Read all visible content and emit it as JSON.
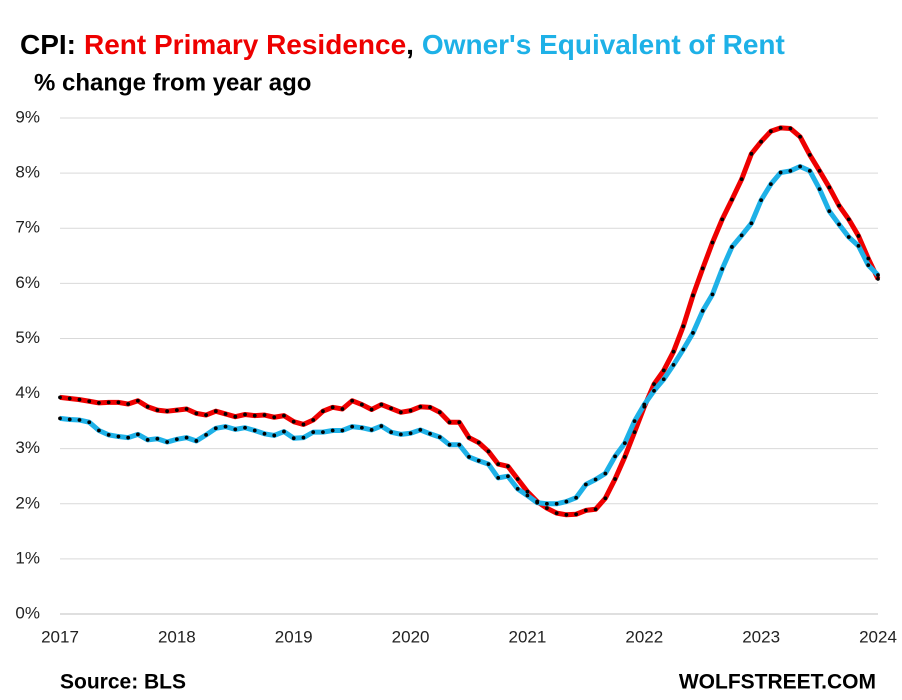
{
  "chart_data": {
    "type": "line",
    "title_prefix": "CPI:",
    "title_separator": ",",
    "subtitle": "% change from year ago",
    "source": "Source: BLS",
    "watermark": "WOLFSTREET.COM",
    "categories": [
      "2017",
      null,
      null,
      null,
      null,
      null,
      null,
      null,
      null,
      null,
      null,
      null,
      "2018",
      null,
      null,
      null,
      null,
      null,
      null,
      null,
      null,
      null,
      null,
      null,
      "2019",
      null,
      null,
      null,
      null,
      null,
      null,
      null,
      null,
      null,
      null,
      null,
      "2020",
      null,
      null,
      null,
      null,
      null,
      null,
      null,
      null,
      null,
      null,
      null,
      "2021",
      null,
      null,
      null,
      null,
      null,
      null,
      null,
      null,
      null,
      null,
      null,
      "2022",
      null,
      null,
      null,
      null,
      null,
      null,
      null,
      null,
      null,
      null,
      null,
      "2023",
      null,
      null,
      null,
      null,
      null,
      null,
      null,
      null,
      null,
      null,
      null,
      "2024"
    ],
    "series": [
      {
        "name": "Rent Primary Residence",
        "color": "#ee0000",
        "values": [
          3.93,
          3.91,
          3.89,
          3.86,
          3.83,
          3.84,
          3.84,
          3.81,
          3.87,
          3.76,
          3.7,
          3.68,
          3.7,
          3.72,
          3.64,
          3.61,
          3.68,
          3.63,
          3.58,
          3.62,
          3.6,
          3.61,
          3.57,
          3.6,
          3.49,
          3.44,
          3.52,
          3.68,
          3.75,
          3.72,
          3.87,
          3.8,
          3.71,
          3.8,
          3.73,
          3.66,
          3.69,
          3.76,
          3.75,
          3.66,
          3.48,
          3.48,
          3.2,
          3.11,
          2.95,
          2.72,
          2.68,
          2.45,
          2.22,
          2.04,
          1.92,
          1.83,
          1.8,
          1.81,
          1.88,
          1.9,
          2.1,
          2.45,
          2.85,
          3.3,
          3.76,
          4.17,
          4.42,
          4.76,
          5.22,
          5.78,
          6.27,
          6.74,
          7.16,
          7.52,
          7.89,
          8.35,
          8.57,
          8.76,
          8.82,
          8.81,
          8.66,
          8.33,
          8.04,
          7.74,
          7.41,
          7.16,
          6.86,
          6.45,
          6.08
        ]
      },
      {
        "name": "Owner's Equivalent of Rent",
        "color": "#1eb1e7",
        "values": [
          3.55,
          3.53,
          3.52,
          3.48,
          3.33,
          3.25,
          3.22,
          3.2,
          3.26,
          3.16,
          3.18,
          3.12,
          3.17,
          3.2,
          3.14,
          3.25,
          3.37,
          3.4,
          3.35,
          3.38,
          3.33,
          3.27,
          3.24,
          3.31,
          3.19,
          3.2,
          3.3,
          3.3,
          3.33,
          3.33,
          3.4,
          3.38,
          3.34,
          3.41,
          3.3,
          3.26,
          3.28,
          3.34,
          3.27,
          3.21,
          3.07,
          3.07,
          2.85,
          2.78,
          2.72,
          2.47,
          2.5,
          2.27,
          2.15,
          2.02,
          2.0,
          2.0,
          2.04,
          2.11,
          2.35,
          2.44,
          2.55,
          2.86,
          3.1,
          3.5,
          3.8,
          4.05,
          4.26,
          4.52,
          4.8,
          5.1,
          5.5,
          5.8,
          6.26,
          6.66,
          6.87,
          7.09,
          7.51,
          7.8,
          8.01,
          8.04,
          8.12,
          8.04,
          7.71,
          7.31,
          7.07,
          6.84,
          6.68,
          6.33,
          6.15
        ]
      }
    ],
    "ylim": [
      0,
      9
    ],
    "yticks": [
      {
        "value": 0,
        "label": "0%"
      },
      {
        "value": 1,
        "label": "1%"
      },
      {
        "value": 2,
        "label": "2%"
      },
      {
        "value": 3,
        "label": "3%"
      },
      {
        "value": 4,
        "label": "4%"
      },
      {
        "value": 5,
        "label": "5%"
      },
      {
        "value": 6,
        "label": "6%"
      },
      {
        "value": 7,
        "label": "7%"
      },
      {
        "value": 8,
        "label": "8%"
      },
      {
        "value": 9,
        "label": "9%"
      }
    ],
    "grid": true,
    "marker_color": "#000000"
  }
}
